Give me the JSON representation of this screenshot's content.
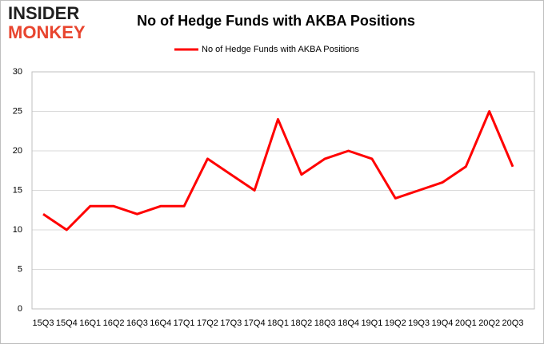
{
  "logo": {
    "line1": "INSIDER",
    "line2": "MONKEY"
  },
  "chart_data": {
    "type": "line",
    "title": "No of Hedge Funds with AKBA Positions",
    "categories": [
      "15Q3",
      "15Q4",
      "16Q1",
      "16Q2",
      "16Q3",
      "16Q4",
      "17Q1",
      "17Q2",
      "17Q3",
      "17Q4",
      "18Q1",
      "18Q2",
      "18Q3",
      "18Q4",
      "19Q1",
      "19Q2",
      "19Q3",
      "19Q4",
      "20Q1",
      "20Q2",
      "20Q3"
    ],
    "series": [
      {
        "name": "No of Hedge Funds with AKBA Positions",
        "color": "#ff0000",
        "values": [
          12,
          10,
          13,
          13,
          12,
          13,
          13,
          19,
          17,
          15,
          24,
          17,
          19,
          20,
          19,
          14,
          15,
          16,
          18,
          25,
          18
        ]
      }
    ],
    "ylim": [
      0,
      30
    ],
    "yticks": [
      0,
      5,
      10,
      15,
      20,
      25,
      30
    ],
    "grid": true,
    "legend": "top"
  }
}
